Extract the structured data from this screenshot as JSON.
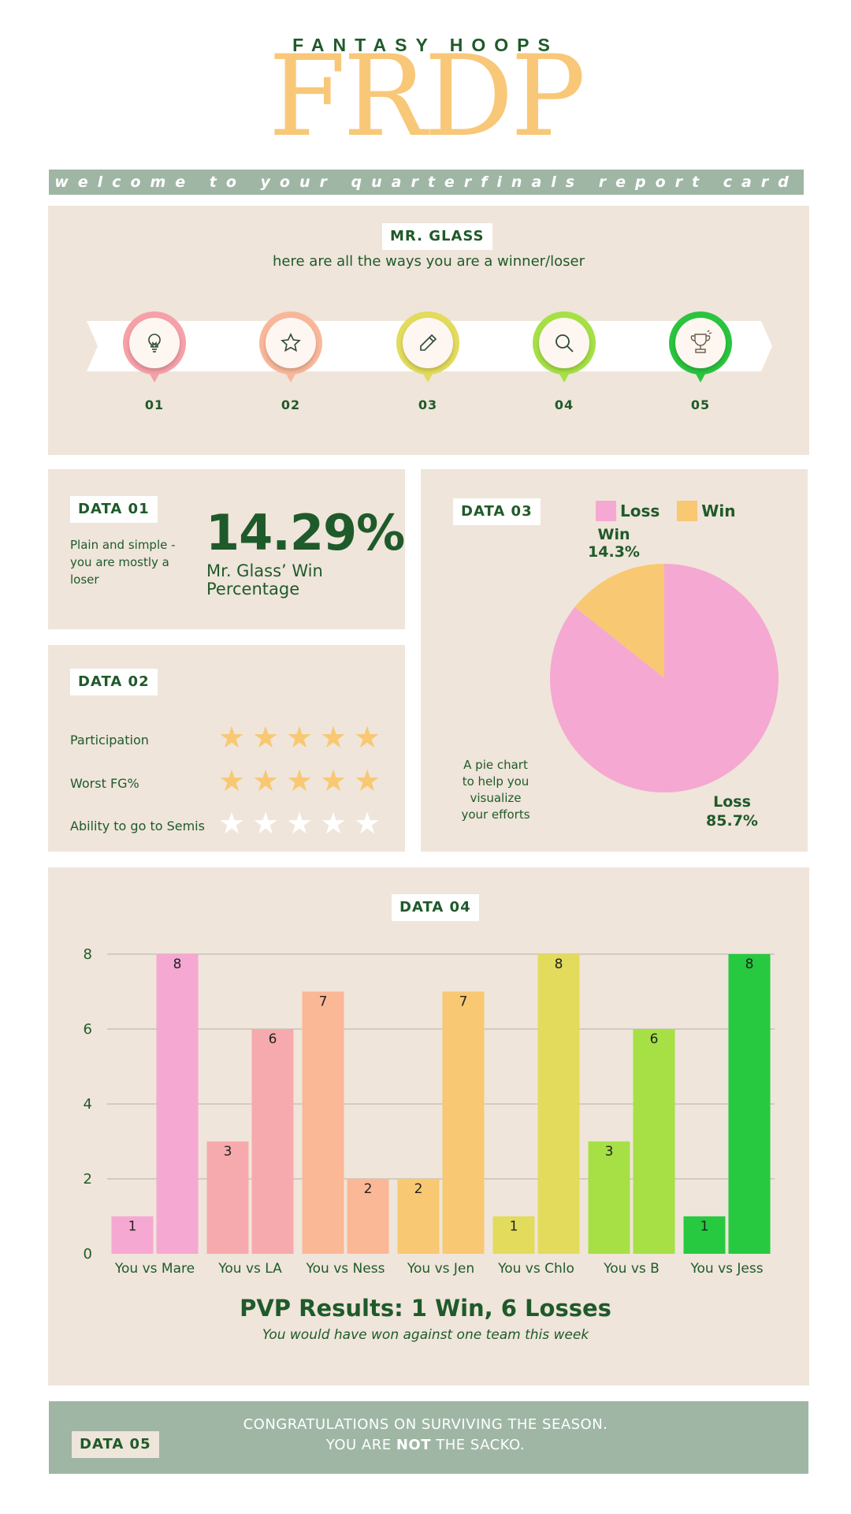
{
  "header": {
    "brand": "FANTASY HOOPS",
    "logo": "FRDP",
    "welcome": "welcome to your quarterfinals report card",
    "brand_color": "#f8c878",
    "accent_color": "#1f5a2a"
  },
  "intro": {
    "name": "MR. GLASS",
    "subtitle": "here are all the ways you are a winner/loser",
    "milestones": [
      {
        "num": "01",
        "icon": "lightbulb-icon",
        "color": "#f6a0a8"
      },
      {
        "num": "02",
        "icon": "star-icon",
        "color": "#f9b79a"
      },
      {
        "num": "03",
        "icon": "pencil-icon",
        "color": "#e2db5c"
      },
      {
        "num": "04",
        "icon": "search-icon",
        "color": "#a6e045"
      },
      {
        "num": "05",
        "icon": "trophy-icon",
        "color": "#2ac43f"
      }
    ]
  },
  "data01": {
    "tag": "DATA 01",
    "desc": "Plain and simple - you are mostly a loser",
    "value": "14.29%",
    "caption_line1": "Mr. Glass’ Win",
    "caption_line2": "Percentage"
  },
  "data02": {
    "tag": "DATA 02",
    "ratings": [
      {
        "label": "Participation",
        "stars": 5
      },
      {
        "label": "Worst FG%",
        "stars": 5
      },
      {
        "label": "Ability to go to Semis",
        "stars": 0
      }
    ],
    "max_stars": 5
  },
  "data03": {
    "tag": "DATA 03",
    "desc_lines": [
      "A pie chart",
      "to help you",
      "visualize",
      "your efforts"
    ],
    "labels": {
      "win_name": "Win",
      "win_pct": "14.3%",
      "loss_name": "Loss",
      "loss_pct": "85.7%"
    }
  },
  "data04": {
    "tag": "DATA 04",
    "summary": "PVP Results: 1 Win, 6 Losses",
    "summary_sub": "You would have won against one team this week"
  },
  "data05": {
    "tag": "DATA 05",
    "line1": "CONGRATULATIONS ON SURVIVING THE SEASON.",
    "line2_pre": "YOU ARE ",
    "line2_bold": "NOT",
    "line2_post": " THE SACKO."
  },
  "chart_data": [
    {
      "type": "pie",
      "legend": [
        "Loss",
        "Win"
      ],
      "legend_position": "top",
      "slices": [
        {
          "name": "Loss",
          "value": 85.7,
          "label": "85.7%",
          "color": "#f5a8d2"
        },
        {
          "name": "Win",
          "value": 14.3,
          "label": "14.3%",
          "color": "#f8c872"
        }
      ]
    },
    {
      "type": "bar",
      "categories": [
        "You vs Mare",
        "You vs LA",
        "You vs Ness",
        "You vs Jen",
        "You vs Chlo",
        "You vs B",
        "You vs Jess"
      ],
      "series": [
        {
          "values": [
            1,
            3,
            7,
            2,
            1,
            3,
            1
          ]
        },
        {
          "values": [
            8,
            6,
            2,
            7,
            8,
            6,
            8
          ]
        }
      ],
      "category_colors": [
        "#f5a8d2",
        "#f7aaad",
        "#fbb896",
        "#f8c872",
        "#e2db5c",
        "#a6e045",
        "#26c93f"
      ],
      "ylim": [
        0,
        8
      ],
      "yticks": [
        0,
        2,
        4,
        6,
        8
      ],
      "grid": true
    }
  ]
}
